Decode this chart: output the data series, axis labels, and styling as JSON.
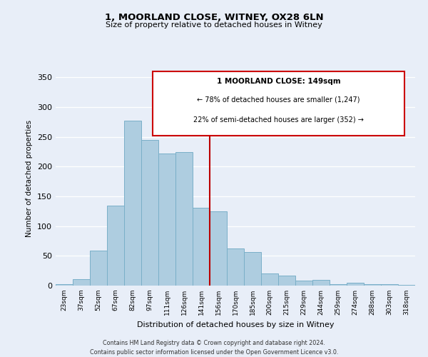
{
  "title": "1, MOORLAND CLOSE, WITNEY, OX28 6LN",
  "subtitle": "Size of property relative to detached houses in Witney",
  "xlabel": "Distribution of detached houses by size in Witney",
  "ylabel": "Number of detached properties",
  "categories": [
    "23sqm",
    "37sqm",
    "52sqm",
    "67sqm",
    "82sqm",
    "97sqm",
    "111sqm",
    "126sqm",
    "141sqm",
    "156sqm",
    "170sqm",
    "185sqm",
    "200sqm",
    "215sqm",
    "229sqm",
    "244sqm",
    "259sqm",
    "274sqm",
    "288sqm",
    "303sqm",
    "318sqm"
  ],
  "values": [
    2,
    11,
    59,
    135,
    277,
    245,
    222,
    225,
    131,
    125,
    62,
    57,
    20,
    17,
    8,
    10,
    3,
    5,
    2,
    2,
    1
  ],
  "bar_color": "#aecde0",
  "bar_edge_color": "#7aafc8",
  "vline_color": "#bb0000",
  "vline_x": 8.5,
  "box_text_line1": "1 MOORLAND CLOSE: 149sqm",
  "box_text_line2": "← 78% of detached houses are smaller (1,247)",
  "box_text_line3": "22% of semi-detached houses are larger (352) →",
  "box_color": "#ffffff",
  "box_edge_color": "#cc0000",
  "ylim": [
    0,
    360
  ],
  "yticks": [
    0,
    50,
    100,
    150,
    200,
    250,
    300,
    350
  ],
  "background_color": "#e8eef8",
  "footer_line1": "Contains HM Land Registry data © Crown copyright and database right 2024.",
  "footer_line2": "Contains public sector information licensed under the Open Government Licence v3.0."
}
